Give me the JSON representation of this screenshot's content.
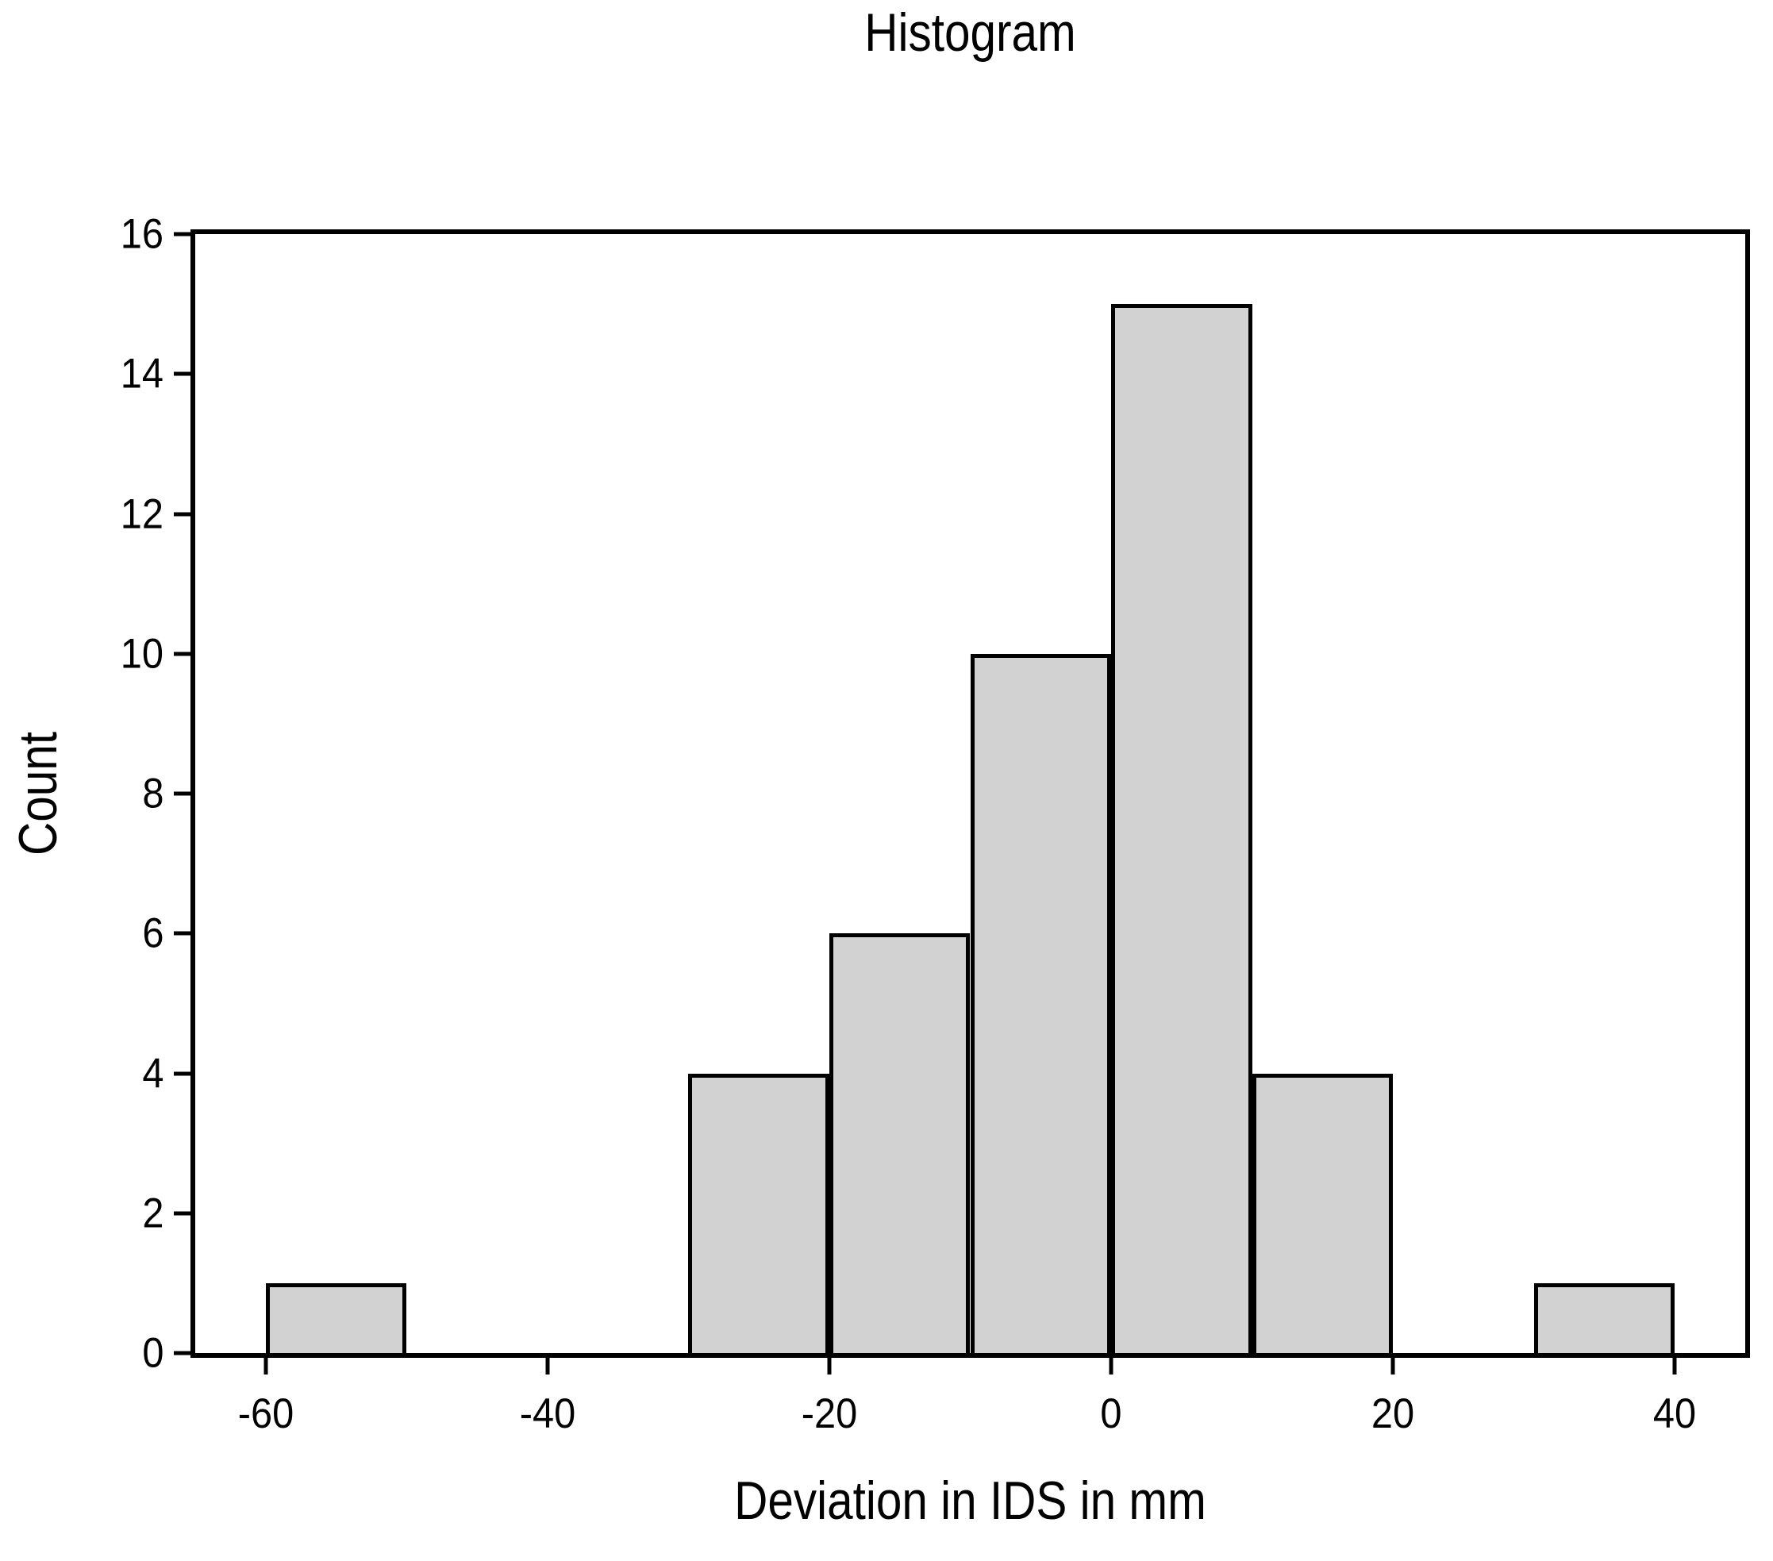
{
  "chart_data": {
    "type": "bar",
    "subtype": "histogram",
    "title": "Histogram",
    "xlabel": "Deviation in IDS in mm",
    "ylabel": "Count",
    "bars": [
      {
        "x0": -60,
        "x1": -50,
        "count": 1
      },
      {
        "x0": -30,
        "x1": -20,
        "count": 4
      },
      {
        "x0": -20,
        "x1": -10,
        "count": 6
      },
      {
        "x0": -10,
        "x1": 0,
        "count": 10
      },
      {
        "x0": 0,
        "x1": 10,
        "count": 15
      },
      {
        "x0": 10,
        "x1": 20,
        "count": 4
      },
      {
        "x0": 30,
        "x1": 40,
        "count": 1
      }
    ],
    "x_ticks": [
      -60,
      -40,
      -20,
      0,
      20,
      40
    ],
    "y_ticks": [
      0,
      2,
      4,
      6,
      8,
      10,
      12,
      14,
      16
    ],
    "xlim": [
      -65,
      45
    ],
    "ylim": [
      0,
      16
    ],
    "grid": false,
    "legend": null,
    "colors": {
      "bar_fill": "#d2d2d2",
      "line": "#000000",
      "background": "#ffffff"
    }
  }
}
